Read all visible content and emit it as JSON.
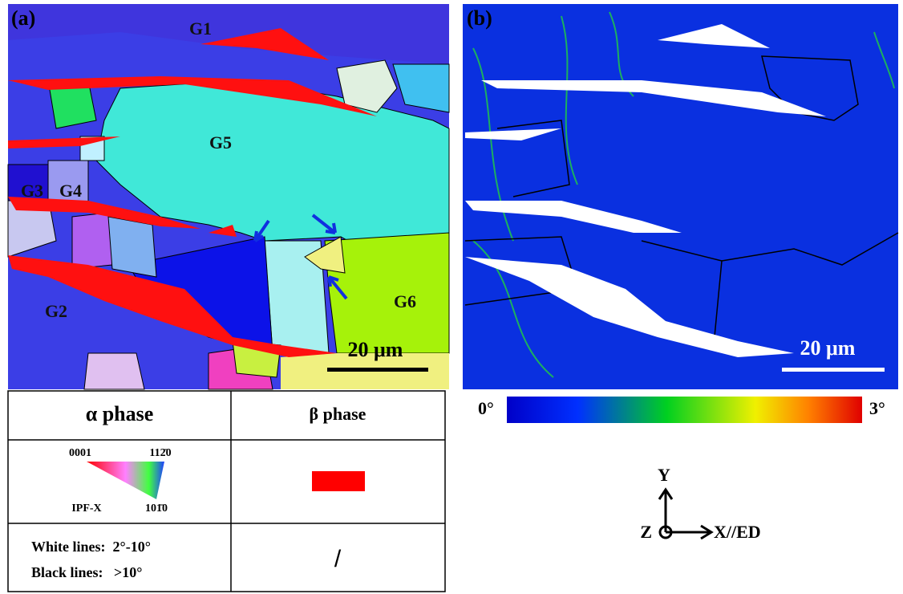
{
  "panel_a": {
    "label": "(a)",
    "grains": [
      "G1",
      "G2",
      "G3",
      "G4",
      "G5",
      "G6"
    ],
    "scale_bar": "20 μm"
  },
  "panel_b": {
    "label": "(b)",
    "scale_bar": "20 μm"
  },
  "legend_table": {
    "header": [
      "α phase",
      "β phase"
    ],
    "ipf": {
      "top_left": "0001",
      "top_right": "112̄0",
      "bottom": "101̄0",
      "name": "IPF-X"
    },
    "lines": [
      "White lines:  2°-10°",
      "Black lines:   >10°"
    ],
    "beta_lines": "/"
  },
  "colorbar": {
    "min": "0°",
    "max": "3°"
  },
  "axes": {
    "y": "Y",
    "z": "Z",
    "x": "X//ED"
  }
}
